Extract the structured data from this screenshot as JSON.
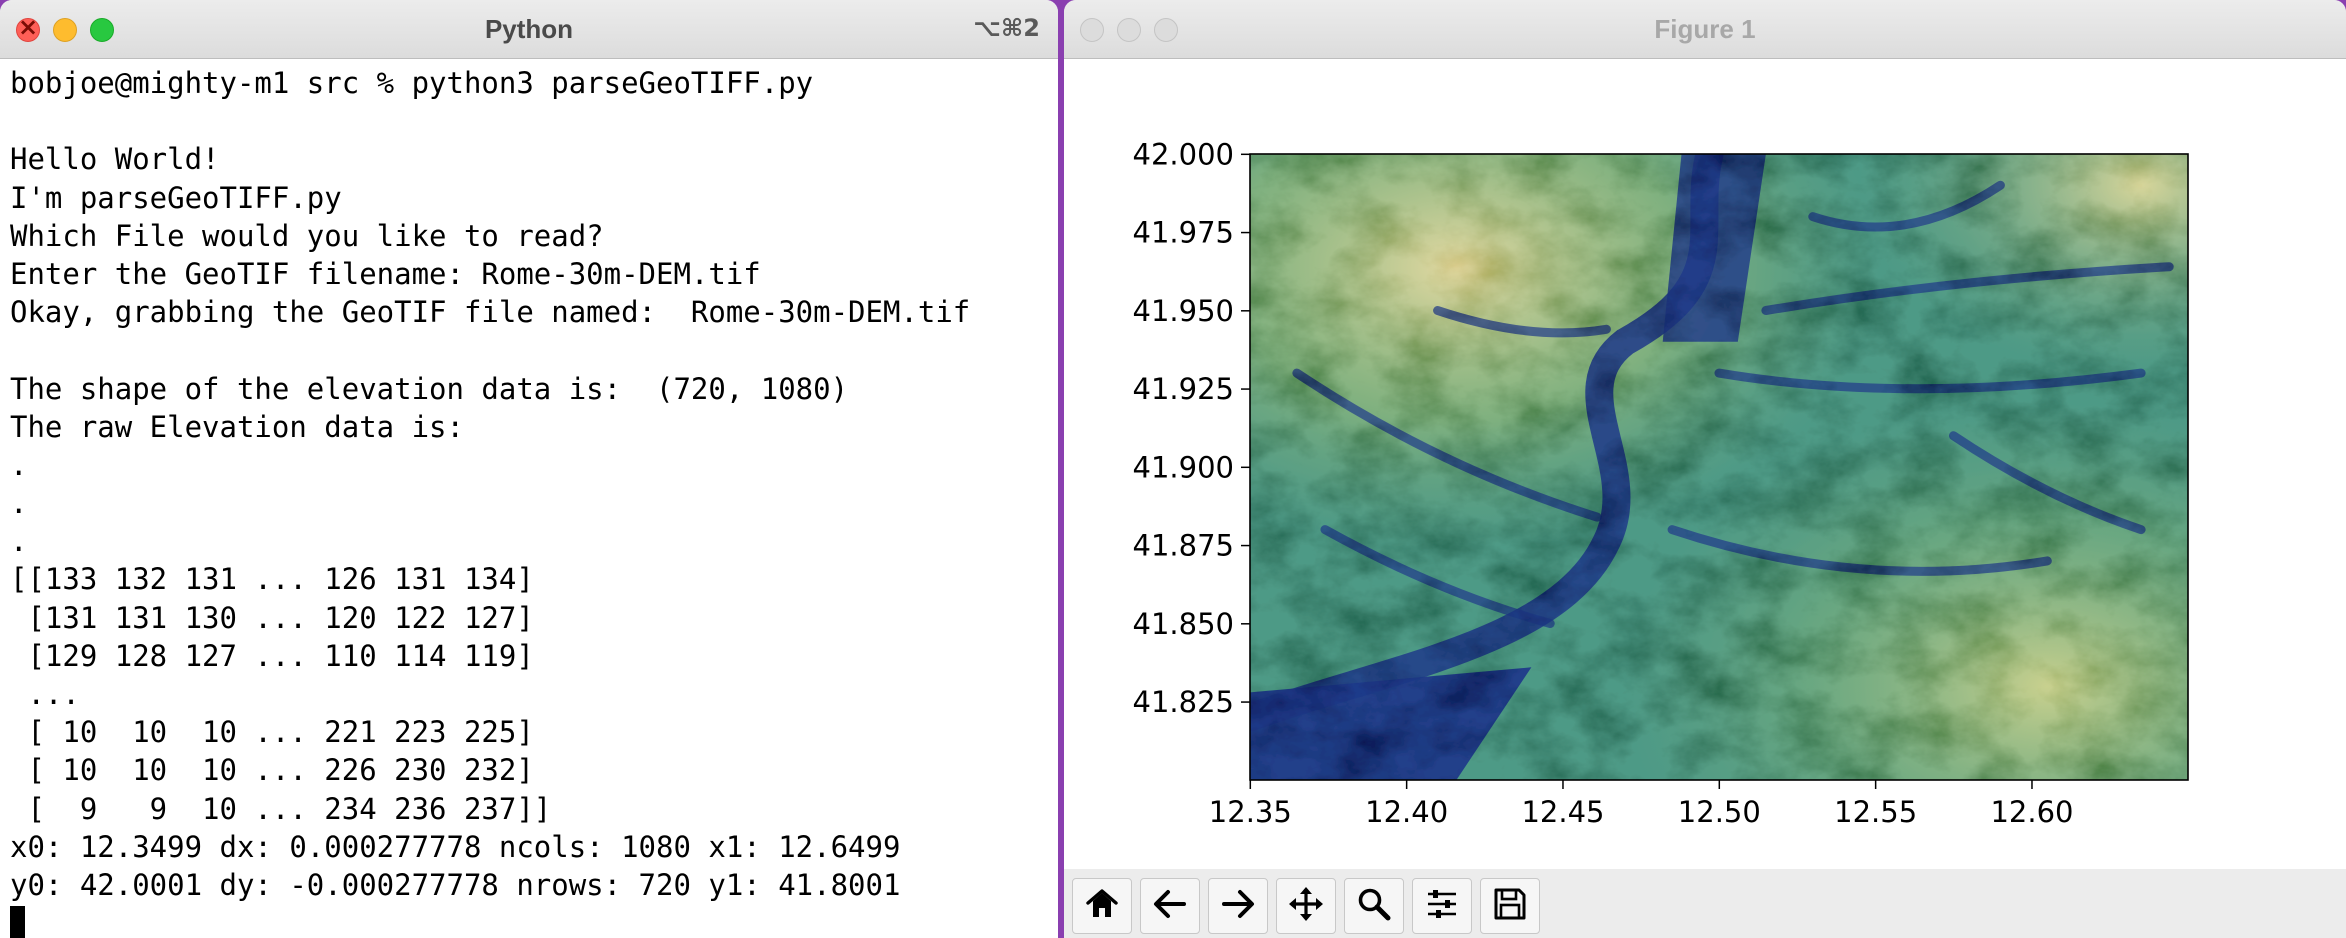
{
  "terminal": {
    "title": "Python",
    "shortcut": "⌥⌘2",
    "lines": [
      "bobjoe@mighty-m1 src % python3 parseGeoTIFF.py",
      "",
      "Hello World!",
      "I'm parseGeoTIFF.py",
      "Which File would you like to read?",
      "Enter the GeoTIF filename: Rome-30m-DEM.tif",
      "Okay, grabbing the GeoTIF file named:  Rome-30m-DEM.tif",
      "",
      "The shape of the elevation data is:  (720, 1080)",
      "The raw Elevation data is:",
      ".",
      ".",
      ".",
      "[[133 132 131 ... 126 131 134]",
      " [131 131 130 ... 120 122 127]",
      " [129 128 127 ... 110 114 119]",
      " ...",
      " [ 10  10  10 ... 221 223 225]",
      " [ 10  10  10 ... 226 230 232]",
      " [  9   9  10 ... 234 236 237]]",
      "x0: 12.3499 dx: 0.000277778 ncols: 1080 x1: 12.6499",
      "y0: 42.0001 dy: -0.000277778 nrows: 720 y1: 41.8001"
    ]
  },
  "figure": {
    "title": "Figure 1",
    "toolbar": [
      {
        "name": "home",
        "icon": "home-icon"
      },
      {
        "name": "back",
        "icon": "arrow-left-icon"
      },
      {
        "name": "forward",
        "icon": "arrow-right-icon"
      },
      {
        "name": "pan",
        "icon": "move-icon"
      },
      {
        "name": "zoom",
        "icon": "magnifier-icon"
      },
      {
        "name": "subplots",
        "icon": "sliders-icon"
      },
      {
        "name": "save",
        "icon": "floppy-disk-icon"
      }
    ]
  },
  "chart_data": {
    "type": "heatmap",
    "description_colormap": "gist_earth-like (dark blue low to tan high)",
    "xlim": [
      12.3499,
      12.6499
    ],
    "ylim": [
      41.8001,
      42.0001
    ],
    "x_ticks": [
      12.35,
      12.4,
      12.45,
      12.5,
      12.55,
      12.6
    ],
    "x_tick_labels": [
      "12.35",
      "12.40",
      "12.45",
      "12.50",
      "12.55",
      "12.60"
    ],
    "y_ticks": [
      41.825,
      41.85,
      41.875,
      41.9,
      41.925,
      41.95,
      41.975,
      42.0
    ],
    "y_tick_labels": [
      "41.825",
      "41.850",
      "41.875",
      "41.900",
      "41.925",
      "41.950",
      "41.975",
      "42.000"
    ],
    "grid": false,
    "colors": {
      "low": "#1f3a8a",
      "mid": "#4e9a86",
      "high": "#ddd29a"
    }
  }
}
